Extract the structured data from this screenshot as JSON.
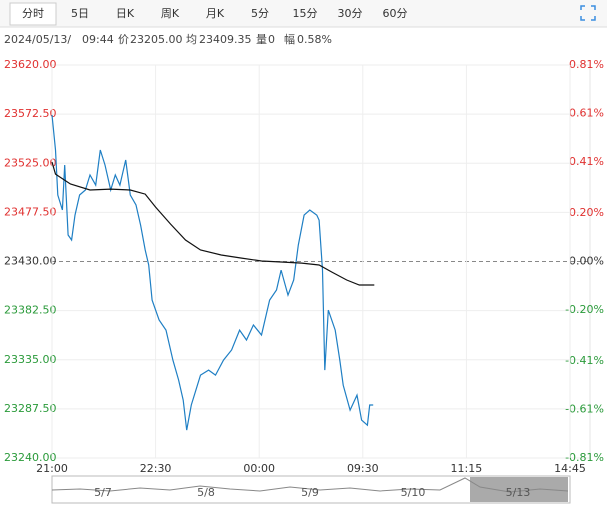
{
  "tabs": [
    "分时",
    "5日",
    "日K",
    "周K",
    "月K",
    "5分",
    "15分",
    "30分",
    "60分"
  ],
  "info": [
    "2024/05/13/",
    "09:44",
    "价",
    "23205.00",
    "均",
    "23409.35",
    "量",
    "0",
    "幅",
    "0.58%"
  ],
  "navigator": {
    "labels": [
      "5/7",
      "5/8",
      "5/9",
      "5/10",
      "5/13"
    ]
  },
  "chart_data": {
    "type": "line",
    "series": [
      {
        "name": "price",
        "color": "#1f7fc4",
        "x": [
          0,
          3,
          5,
          9,
          11,
          14,
          17,
          20,
          24,
          29,
          33,
          38,
          42,
          46,
          51,
          55,
          59,
          64,
          68,
          73,
          77,
          81,
          84,
          87,
          93,
          99,
          105,
          110,
          114,
          117,
          121,
          125,
          129,
          136,
          142,
          149,
          156,
          163,
          169,
          175,
          182,
          189,
          195,
          199,
          205,
          210,
          214,
          219,
          224,
          230,
          232,
          235,
          237,
          240,
          246,
          250,
          253,
          259,
          265,
          269,
          274,
          276,
          279
        ],
        "values": [
          23571.7,
          23537.9,
          23494.3,
          23479.8,
          23523.3,
          23455.6,
          23450.8,
          23474.9,
          23494.3,
          23499.1,
          23513.6,
          23503.9,
          23537.8,
          23523.3,
          23499.1,
          23513.6,
          23503.9,
          23528.1,
          23494.3,
          23484.6,
          23465.2,
          23441.1,
          23426.6,
          23392.7,
          23373.4,
          23363.7,
          23334.7,
          23315.4,
          23296.0,
          23267.0,
          23291.2,
          23305.7,
          23320.2,
          23325.0,
          23320.2,
          23334.7,
          23344.4,
          23363.7,
          23354.1,
          23368.6,
          23358.9,
          23392.7,
          23402.4,
          23421.7,
          23397.5,
          23412.1,
          23445.9,
          23474.9,
          23479.8,
          23474.9,
          23470.0,
          23421.7,
          23325.0,
          23383.0,
          23363.7,
          23334.7,
          23310.5,
          23286.3,
          23300.8,
          23276.6,
          23271.7,
          23291.2,
          23291.2
        ]
      },
      {
        "name": "average",
        "color": "#111111",
        "x": [
          0,
          3,
          16,
          33,
          51,
          68,
          81,
          90,
          103,
          116,
          129,
          147,
          164,
          182,
          199,
          217,
          232,
          243,
          256,
          267,
          280
        ],
        "values": [
          23526.1,
          23514.5,
          23504.9,
          23499.1,
          23500.0,
          23499.1,
          23495.2,
          23482.6,
          23466.2,
          23450.8,
          23441.1,
          23436.3,
          23433.4,
          23430.5,
          23429.5,
          23428.5,
          23426.6,
          23419.8,
          23412.1,
          23407.3,
          23407.3
        ]
      }
    ],
    "xlim": [
      0,
      450
    ],
    "xticks": [
      {
        "value": 0,
        "label": "21:00"
      },
      {
        "value": 90,
        "label": "22:30"
      },
      {
        "value": 180,
        "label": "00:00"
      },
      {
        "value": 270,
        "label": "09:30"
      },
      {
        "value": 360,
        "label": "11:15"
      },
      {
        "value": 450,
        "label": "14:45"
      }
    ],
    "ylim": [
      23240,
      23620
    ],
    "yticks": [
      {
        "value": 23620,
        "label": "23620.00"
      },
      {
        "value": 23572.5,
        "label": "23572.50"
      },
      {
        "value": 23525,
        "label": "23525.00"
      },
      {
        "value": 23477.5,
        "label": "23477.50"
      },
      {
        "value": 23430,
        "label": "23430.00"
      },
      {
        "value": 23382.5,
        "label": "23382.50"
      },
      {
        "value": 23335,
        "label": "23335.00"
      },
      {
        "value": 23287.5,
        "label": "23287.50"
      },
      {
        "value": 23240,
        "label": "23240.00"
      }
    ],
    "y2lim": [
      -0.81,
      0.81
    ],
    "y2ticks": [
      {
        "value": 0.81,
        "label": "0.81%"
      },
      {
        "value": 0.61,
        "label": "0.61%"
      },
      {
        "value": 0.41,
        "label": "0.41%"
      },
      {
        "value": 0.2,
        "label": "0.20%"
      },
      {
        "value": 0,
        "label": "0.00%"
      },
      {
        "value": -0.2,
        "label": "-0.20%"
      },
      {
        "value": -0.41,
        "label": "-0.41%"
      },
      {
        "value": -0.61,
        "label": "-0.61%"
      },
      {
        "value": -0.81,
        "label": "-0.81%"
      }
    ],
    "up_color": "#e0302f",
    "down_color": "#2a9a3a",
    "flat_color": "#333333",
    "grid": true
  }
}
